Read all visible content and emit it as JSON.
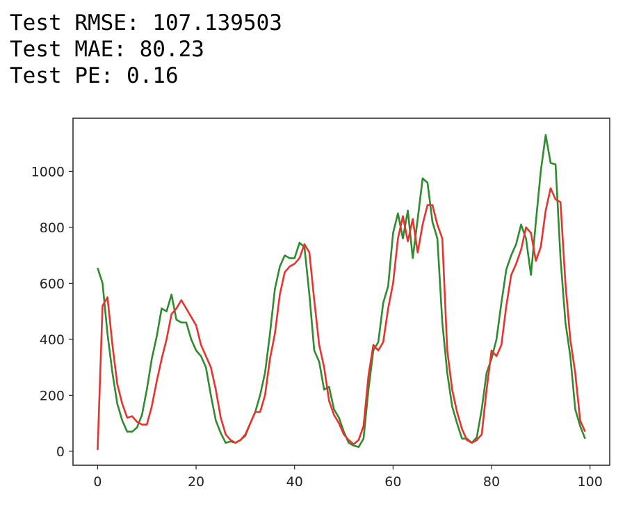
{
  "metrics": {
    "rmse": "Test RMSE: 107.139503",
    "mae": "Test MAE: 80.23",
    "pe": "Test PE: 0.16"
  },
  "chart_data": {
    "type": "line",
    "title": "",
    "xlabel": "",
    "ylabel": "",
    "xlim": [
      -5,
      104
    ],
    "ylim": [
      -50,
      1190
    ],
    "xticks": [
      0,
      20,
      40,
      60,
      80,
      100
    ],
    "yticks": [
      0,
      200,
      400,
      600,
      800,
      1000
    ],
    "grid": false,
    "legend": "none",
    "series": [
      {
        "color": "#2e8b2e",
        "x": [
          0,
          1,
          2,
          3,
          4,
          5,
          6,
          7,
          8,
          9,
          10,
          11,
          12,
          13,
          14,
          15,
          16,
          17,
          18,
          19,
          20,
          21,
          22,
          23,
          24,
          25,
          26,
          27,
          28,
          29,
          30,
          31,
          32,
          33,
          34,
          35,
          36,
          37,
          38,
          39,
          40,
          41,
          42,
          43,
          44,
          45,
          46,
          47,
          48,
          49,
          50,
          51,
          52,
          53,
          54,
          55,
          56,
          57,
          58,
          59,
          60,
          61,
          62,
          63,
          64,
          65,
          66,
          67,
          68,
          69,
          70,
          71,
          72,
          73,
          74,
          75,
          76,
          77,
          78,
          79,
          80,
          81,
          82,
          83,
          84,
          85,
          86,
          87,
          88,
          89,
          90,
          91,
          92,
          93,
          94,
          95,
          96,
          97,
          98,
          99
        ],
        "values": [
          655,
          600,
          420,
          280,
          170,
          110,
          70,
          70,
          85,
          130,
          220,
          330,
          410,
          510,
          500,
          560,
          470,
          460,
          460,
          400,
          360,
          340,
          300,
          200,
          110,
          65,
          30,
          35,
          30,
          40,
          55,
          100,
          140,
          200,
          280,
          420,
          580,
          660,
          700,
          690,
          690,
          745,
          730,
          560,
          360,
          320,
          220,
          230,
          150,
          120,
          70,
          30,
          20,
          15,
          45,
          220,
          360,
          390,
          530,
          590,
          780,
          850,
          760,
          860,
          690,
          830,
          975,
          960,
          820,
          760,
          460,
          280,
          160,
          100,
          45,
          45,
          30,
          50,
          150,
          280,
          330,
          400,
          530,
          650,
          700,
          740,
          810,
          760,
          630,
          820,
          1000,
          1130,
          1030,
          1025,
          690,
          460,
          340,
          150,
          90,
          45
        ]
      },
      {
        "color": "#e8322e",
        "x": [
          0,
          1,
          2,
          3,
          4,
          5,
          6,
          7,
          8,
          9,
          10,
          11,
          12,
          13,
          14,
          15,
          16,
          17,
          18,
          19,
          20,
          21,
          22,
          23,
          24,
          25,
          26,
          27,
          28,
          29,
          30,
          31,
          32,
          33,
          34,
          35,
          36,
          37,
          38,
          39,
          40,
          41,
          42,
          43,
          44,
          45,
          46,
          47,
          48,
          49,
          50,
          51,
          52,
          53,
          54,
          55,
          56,
          57,
          58,
          59,
          60,
          61,
          62,
          63,
          64,
          65,
          66,
          67,
          68,
          69,
          70,
          71,
          72,
          73,
          74,
          75,
          76,
          77,
          78,
          79,
          80,
          81,
          82,
          83,
          84,
          85,
          86,
          87,
          88,
          89,
          90,
          91,
          92,
          93,
          94,
          95,
          96,
          97,
          98,
          99
        ],
        "values": [
          5,
          520,
          550,
          380,
          240,
          170,
          120,
          125,
          105,
          95,
          95,
          160,
          250,
          330,
          400,
          490,
          510,
          540,
          510,
          480,
          450,
          380,
          340,
          300,
          220,
          120,
          60,
          40,
          30,
          40,
          60,
          100,
          140,
          140,
          200,
          330,
          420,
          560,
          640,
          660,
          670,
          690,
          740,
          710,
          540,
          380,
          300,
          180,
          130,
          100,
          60,
          40,
          25,
          40,
          90,
          270,
          380,
          360,
          390,
          510,
          600,
          760,
          840,
          750,
          830,
          710,
          810,
          880,
          880,
          810,
          760,
          360,
          220,
          140,
          80,
          40,
          30,
          40,
          60,
          220,
          360,
          340,
          380,
          520,
          630,
          670,
          720,
          800,
          780,
          680,
          730,
          860,
          940,
          900,
          890,
          600,
          400,
          280,
          110,
          70
        ]
      }
    ]
  }
}
